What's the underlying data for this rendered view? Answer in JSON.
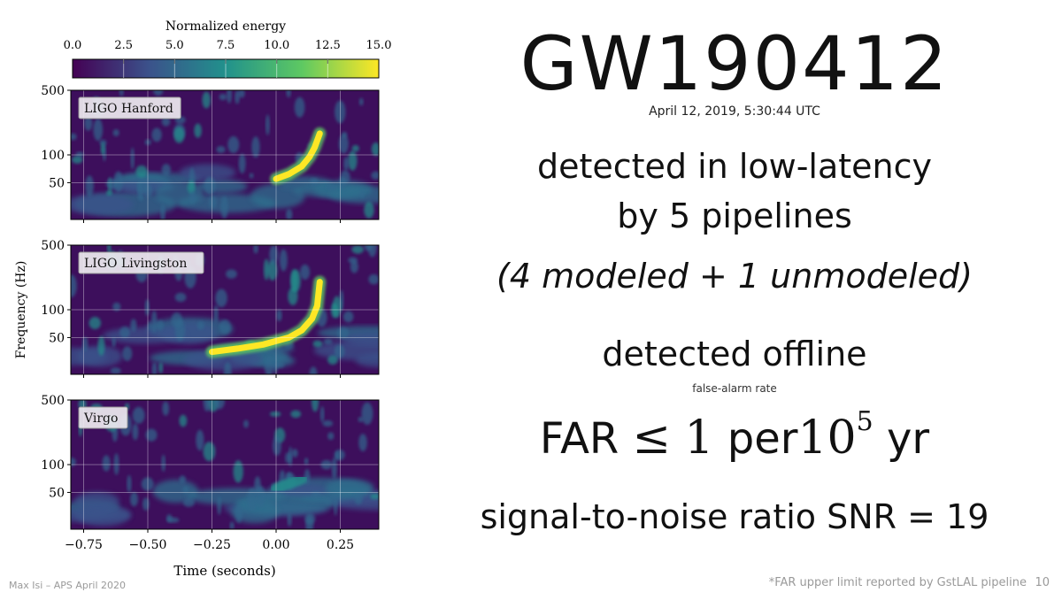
{
  "slide": {
    "title": "GW190412",
    "date": "April 12, 2019, 5:30:44 UTC",
    "line1": "detected in low-latency",
    "line2": "by 5 pipelines",
    "line3": "(4 modeled + 1 unmodeled)",
    "line4": "detected offline",
    "far_caption": "false-alarm rate",
    "far_prefix": "FAR",
    "far_symbol": "≤",
    "far_number": "1",
    "far_per": "per",
    "far_base": "10",
    "far_exp": "5",
    "far_unit": "yr",
    "snr": "signal-to-noise ratio SNR = 19",
    "footer_left": "Max Isi – APS April 2020",
    "footer_right": "*FAR upper limit reported by  GstLAL pipeline",
    "page_number": "10"
  },
  "chart_data": {
    "type": "heatmap",
    "colorbar": {
      "label": "Normalized energy",
      "ticks": [
        "0.0",
        "2.5",
        "5.0",
        "7.5",
        "10.0",
        "12.5",
        "15.0"
      ],
      "range": [
        0,
        15
      ],
      "colormap": [
        "#440154",
        "#3b528b",
        "#21918c",
        "#5ec962",
        "#fde725"
      ]
    },
    "ylabel": "Frequency (Hz)",
    "xlabel": "Time (seconds)",
    "x_ticks": [
      "−0.75",
      "−0.50",
      "−0.25",
      "0.00",
      "0.25"
    ],
    "x_tick_values": [
      -0.75,
      -0.5,
      -0.25,
      0.0,
      0.25
    ],
    "xlim": [
      -0.8,
      0.4
    ],
    "y_scale": "log",
    "y_ticks": [
      "500",
      "100",
      "50"
    ],
    "y_tick_values": [
      500,
      100,
      50
    ],
    "ylim": [
      20,
      500
    ],
    "panels": [
      {
        "name": "LIGO Hanford",
        "chirp": [
          [
            0.0,
            55
          ],
          [
            0.05,
            62
          ],
          [
            0.1,
            75
          ],
          [
            0.13,
            95
          ],
          [
            0.15,
            120
          ],
          [
            0.17,
            170
          ]
        ]
      },
      {
        "name": "LIGO Livingston",
        "chirp": [
          [
            -0.25,
            35
          ],
          [
            -0.15,
            38
          ],
          [
            -0.05,
            42
          ],
          [
            0.05,
            50
          ],
          [
            0.1,
            60
          ],
          [
            0.14,
            80
          ],
          [
            0.16,
            110
          ],
          [
            0.17,
            200
          ]
        ]
      },
      {
        "name": "Virgo",
        "chirp": [
          [
            0.0,
            55
          ],
          [
            0.1,
            70
          ]
        ]
      }
    ],
    "grid": true
  }
}
